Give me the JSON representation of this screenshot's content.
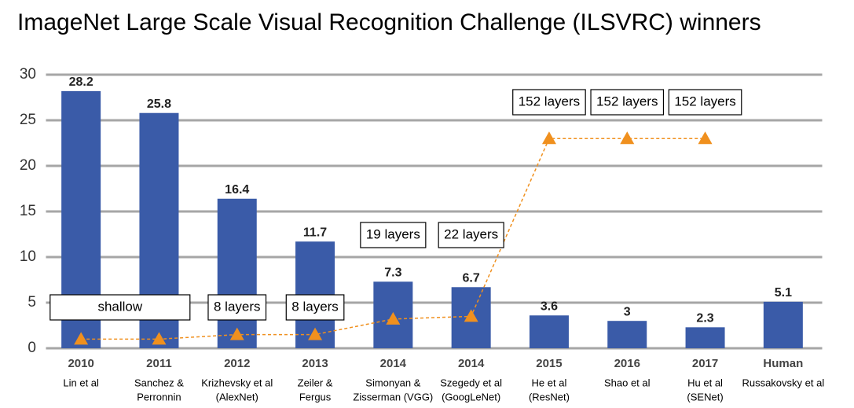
{
  "chart_data": {
    "type": "bar",
    "title": "ImageNet Large Scale Visual Recognition Challenge (ILSVRC) winners",
    "categories": [
      "2010",
      "2011",
      "2012",
      "2013",
      "2014",
      "2014",
      "2015",
      "2016",
      "2017",
      "Human"
    ],
    "authors": [
      [
        "Lin et al"
      ],
      [
        "Sanchez &",
        "Perronnin"
      ],
      [
        "Krizhevsky et al",
        "(AlexNet)"
      ],
      [
        "Zeiler &",
        "Fergus"
      ],
      [
        "Simonyan &",
        "Zisserman (VGG)"
      ],
      [
        "Szegedy et al",
        "(GoogLeNet)"
      ],
      [
        "He et al",
        "(ResNet)"
      ],
      [
        "Shao et al"
      ],
      [
        "Hu et al",
        "(SENet)"
      ],
      [
        "Russakovsky et al"
      ]
    ],
    "values": [
      28.2,
      25.8,
      16.4,
      11.7,
      7.3,
      6.7,
      3.6,
      3,
      2.3,
      5.1
    ],
    "color": "#3a5ba8",
    "ylim": [
      0,
      30
    ],
    "yticks": [
      0,
      5,
      10,
      15,
      20,
      25,
      30
    ],
    "grid": true,
    "depth_line": {
      "color": "#f0901e",
      "values": [
        1,
        1,
        1.5,
        1.5,
        3.2,
        3.5,
        23,
        23,
        23,
        null
      ]
    },
    "layer_labels": [
      "shallow",
      null,
      "8 layers",
      "8 layers",
      "19 layers",
      "22 layers",
      "152 layers",
      "152 layers",
      "152 layers",
      null
    ]
  }
}
